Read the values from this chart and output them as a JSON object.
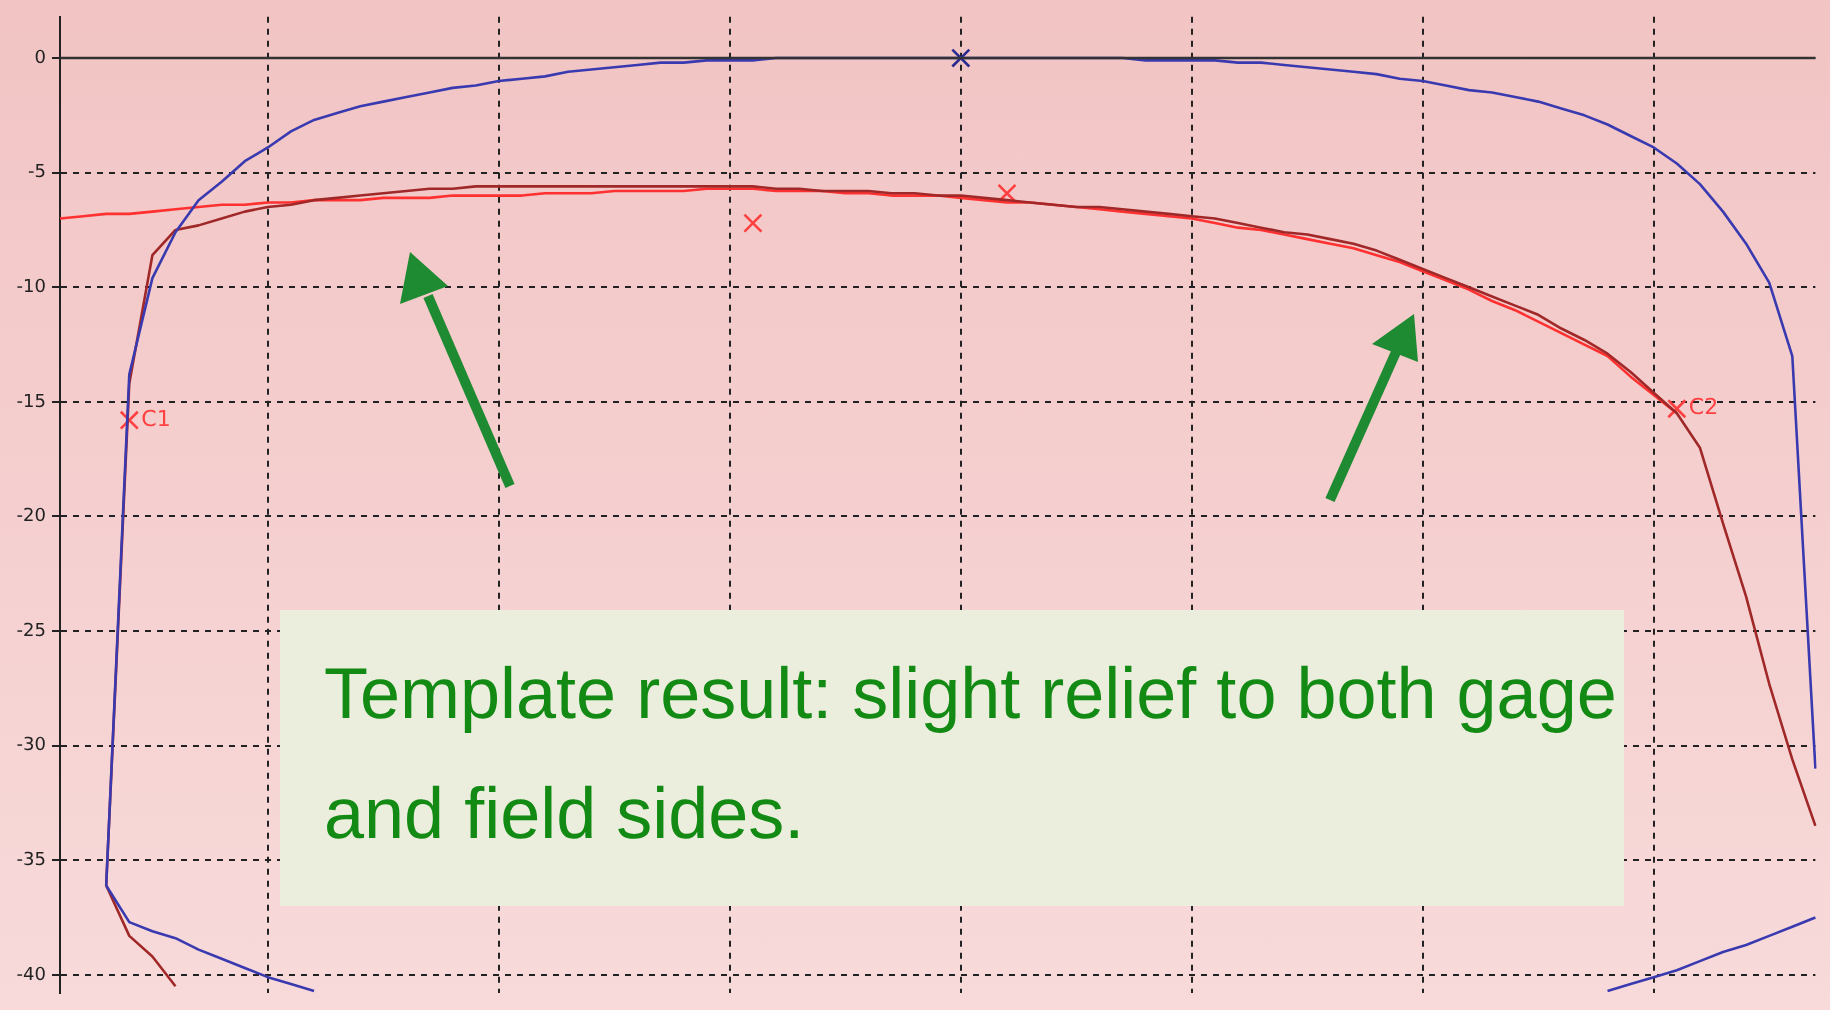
{
  "chart_data": {
    "type": "line",
    "ylim": [
      -40.8,
      1.8
    ],
    "categories": [
      null,
      null,
      null,
      null,
      null,
      null,
      null,
      null,
      null,
      null,
      null,
      null,
      null,
      null,
      null,
      null,
      null,
      null,
      null,
      null,
      null,
      null,
      null,
      null,
      null,
      null,
      null,
      null,
      null,
      null,
      null,
      null,
      null,
      null,
      null,
      null,
      null,
      null,
      null,
      null,
      null,
      null,
      null,
      null,
      null,
      null,
      null,
      null,
      null,
      null,
      null,
      null,
      null,
      null,
      null,
      null,
      null,
      null,
      null,
      null,
      null,
      null,
      null,
      null,
      null,
      null,
      null,
      null,
      null,
      null,
      null,
      null,
      null,
      null,
      null,
      null,
      null
    ],
    "yticks": [
      -40,
      -35,
      -30,
      -25,
      -20,
      -15,
      -10,
      -5,
      0
    ],
    "tick_labels": "y",
    "grid": true,
    "series": [
      {
        "color": "#3a3ab0",
        "values": [
          null,
          null,
          -36.1,
          -13.8,
          -9.6,
          -7.6,
          -6.2,
          -5.4,
          -4.5,
          -3.9,
          -3.2,
          -2.7,
          -2.4,
          -2.1,
          -1.9,
          -1.7,
          -1.5,
          -1.3,
          -1.2,
          -1.0,
          -0.9,
          -0.8,
          -0.6,
          -0.5,
          -0.4,
          -0.3,
          -0.2,
          -0.2,
          -0.1,
          -0.1,
          -0.1,
          0,
          0,
          0,
          0,
          0,
          0,
          0,
          0,
          0,
          0,
          0,
          0,
          0,
          0,
          0,
          0,
          -0.1,
          -0.1,
          -0.1,
          -0.1,
          -0.2,
          -0.2,
          -0.3,
          -0.4,
          -0.5,
          -0.6,
          -0.7,
          -0.9,
          -1.0,
          -1.2,
          -1.4,
          -1.5,
          -1.7,
          -1.9,
          -2.2,
          -2.5,
          -2.9,
          -3.4,
          -3.9,
          -4.6,
          -5.5,
          -6.7,
          -8.1,
          -9.8,
          -13.0,
          -31.0
        ]
      },
      {
        "color": "#3a3ab0",
        "values": [
          null,
          null,
          -36.1,
          -37.7,
          -38.1,
          -38.4,
          -38.9,
          -39.3,
          -39.7,
          -40.1,
          -40.4,
          -40.7,
          null,
          null,
          null,
          null,
          null,
          null,
          null,
          null,
          null,
          null,
          null,
          null,
          null,
          null,
          null,
          null,
          null,
          null,
          null,
          null,
          null,
          null,
          null,
          null,
          null,
          null,
          null,
          null,
          null,
          null,
          null,
          null,
          null,
          null,
          null,
          null,
          null,
          null,
          null,
          null,
          null,
          null,
          null,
          null,
          null,
          null,
          null,
          null,
          null,
          null,
          null,
          null,
          null,
          null,
          null,
          null,
          null,
          null,
          null,
          null,
          null,
          null,
          null,
          null,
          null
        ]
      },
      {
        "color": "#3a3ab0",
        "values": [
          null,
          null,
          null,
          null,
          null,
          null,
          null,
          null,
          null,
          null,
          null,
          null,
          null,
          null,
          null,
          null,
          null,
          null,
          null,
          null,
          null,
          null,
          null,
          null,
          null,
          null,
          null,
          null,
          null,
          null,
          null,
          null,
          null,
          null,
          null,
          null,
          null,
          null,
          null,
          null,
          null,
          null,
          null,
          null,
          null,
          null,
          null,
          null,
          null,
          null,
          null,
          null,
          null,
          null,
          null,
          null,
          null,
          null,
          null,
          null,
          null,
          null,
          null,
          null,
          null,
          null,
          null,
          -40.7,
          -40.4,
          -40.1,
          -39.8,
          -39.4,
          -39.0,
          -38.7,
          -38.3,
          -37.9,
          -37.5
        ]
      },
      {
        "color": "#a02828",
        "values": [
          null,
          null,
          -36.1,
          -14.2,
          -8.6,
          -7.5,
          -7.3,
          -7.0,
          -6.7,
          -6.5,
          -6.4,
          -6.2,
          -6.1,
          -6.0,
          -5.9,
          -5.8,
          -5.7,
          -5.7,
          -5.6,
          -5.6,
          -5.6,
          -5.6,
          -5.6,
          -5.6,
          -5.6,
          -5.6,
          -5.6,
          -5.6,
          -5.6,
          -5.6,
          -5.6,
          -5.7,
          -5.7,
          -5.8,
          -5.8,
          -5.8,
          -5.9,
          -5.9,
          -6.0,
          -6.0,
          -6.1,
          -6.2,
          -6.3,
          -6.4,
          -6.5,
          -6.5,
          -6.6,
          -6.7,
          -6.8,
          -6.9,
          -7.0,
          -7.2,
          -7.4,
          -7.6,
          -7.7,
          -7.9,
          -8.1,
          -8.4,
          -8.8,
          -9.2,
          -9.6,
          -10.0,
          -10.4,
          -10.8,
          -11.2,
          -11.8,
          -12.3,
          -12.9,
          -13.7,
          -14.6,
          -15.5,
          -17.0,
          -20.3,
          -23.5,
          -27.3,
          -30.6,
          -33.5
        ]
      },
      {
        "color": "#a02828",
        "values": [
          null,
          null,
          -36.1,
          -38.3,
          -39.2,
          -40.5,
          null,
          null,
          null,
          null,
          null,
          null,
          null,
          null,
          null,
          null,
          null,
          null,
          null,
          null,
          null,
          null,
          null,
          null,
          null,
          null,
          null,
          null,
          null,
          null,
          null,
          null,
          null,
          null,
          null,
          null,
          null,
          null,
          null,
          null,
          null,
          null,
          null,
          null,
          null,
          null,
          null,
          null,
          null,
          null,
          null,
          null,
          null,
          null,
          null,
          null,
          null,
          null,
          null,
          null,
          null,
          null,
          null,
          null,
          null,
          null,
          null,
          null,
          null,
          null,
          null,
          null,
          null,
          null,
          null,
          null,
          null
        ]
      },
      {
        "color": "#ff3030",
        "values": [
          -7.0,
          -6.9,
          -6.8,
          -6.8,
          -6.7,
          -6.6,
          -6.5,
          -6.4,
          -6.4,
          -6.3,
          -6.3,
          -6.2,
          -6.2,
          -6.2,
          -6.1,
          -6.1,
          -6.1,
          -6.0,
          -6.0,
          -6.0,
          -6.0,
          -5.9,
          -5.9,
          -5.9,
          -5.8,
          -5.8,
          -5.8,
          -5.8,
          -5.7,
          -5.7,
          -5.7,
          -5.8,
          -5.8,
          -5.8,
          -5.9,
          -5.9,
          -6.0,
          -6.0,
          -6.0,
          -6.1,
          -6.2,
          -6.3,
          -6.3,
          -6.4,
          -6.5,
          -6.6,
          -6.7,
          -6.8,
          -6.9,
          -7.0,
          -7.2,
          -7.4,
          -7.5,
          -7.7,
          -7.9,
          -8.1,
          -8.3,
          -8.6,
          -8.9,
          -9.3,
          -9.7,
          -10.1,
          -10.6,
          -11.0,
          -11.5,
          -12.0,
          -12.5,
          -13.0,
          -13.9,
          -14.7,
          -15.5,
          null,
          null,
          null,
          null,
          null,
          null
        ]
      },
      {
        "type": "scatter",
        "color": "#ff4040",
        "marker": "cross",
        "values": [
          null,
          null,
          null,
          -15.8,
          null,
          null,
          null,
          null,
          null,
          null,
          null,
          null,
          null,
          null,
          null,
          null,
          null,
          null,
          null,
          null,
          null,
          null,
          null,
          null,
          null,
          null,
          null,
          null,
          null,
          null,
          null,
          null,
          null,
          null,
          null,
          null,
          null,
          null,
          null,
          null,
          null,
          null,
          null,
          null,
          null,
          null,
          null,
          null,
          null,
          null,
          null,
          null,
          null,
          null,
          null,
          null,
          null,
          null,
          null,
          null,
          null,
          null,
          null,
          null,
          null,
          null,
          null,
          null,
          null,
          null,
          -15.3,
          null,
          null,
          null,
          null,
          null,
          null
        ],
        "value_labels": [
          null,
          null,
          null,
          "C1",
          null,
          null,
          null,
          null,
          null,
          null,
          null,
          null,
          null,
          null,
          null,
          null,
          null,
          null,
          null,
          null,
          null,
          null,
          null,
          null,
          null,
          null,
          null,
          null,
          null,
          null,
          null,
          null,
          null,
          null,
          null,
          null,
          null,
          null,
          null,
          null,
          null,
          null,
          null,
          null,
          null,
          null,
          null,
          null,
          null,
          null,
          null,
          null,
          null,
          null,
          null,
          null,
          null,
          null,
          null,
          null,
          null,
          null,
          null,
          null,
          null,
          null,
          null,
          null,
          null,
          null,
          "C2",
          null,
          null,
          null,
          null,
          null,
          null
        ]
      },
      {
        "type": "scatter",
        "color": "#ff4040",
        "marker": "cross",
        "values": [
          null,
          null,
          null,
          null,
          null,
          null,
          null,
          null,
          null,
          null,
          null,
          null,
          null,
          null,
          null,
          null,
          null,
          null,
          null,
          null,
          null,
          null,
          null,
          null,
          null,
          null,
          null,
          null,
          null,
          null,
          -7.2,
          null,
          null,
          null,
          null,
          null,
          null,
          null,
          null,
          null,
          null,
          -5.9,
          null,
          null,
          null,
          null,
          null,
          null,
          null,
          null,
          null,
          null,
          null,
          null,
          null,
          null,
          null,
          null,
          null,
          null,
          null,
          null,
          null,
          null,
          null,
          null,
          null,
          null,
          null,
          null,
          null,
          null,
          null,
          null,
          null,
          null,
          null
        ]
      },
      {
        "type": "scatter",
        "color": "#2a2a90",
        "marker": "cross",
        "values": [
          null,
          null,
          null,
          null,
          null,
          null,
          null,
          null,
          null,
          null,
          null,
          null,
          null,
          null,
          null,
          null,
          null,
          null,
          null,
          null,
          null,
          null,
          null,
          null,
          null,
          null,
          null,
          null,
          null,
          null,
          null,
          null,
          null,
          null,
          null,
          null,
          null,
          null,
          null,
          0,
          null,
          null,
          null,
          null,
          null,
          null,
          null,
          null,
          null,
          null,
          null,
          null,
          null,
          null,
          null,
          null,
          null,
          null,
          null,
          null,
          null,
          null,
          null,
          null,
          null,
          null,
          null,
          null,
          null,
          null,
          null,
          null,
          null,
          null,
          null,
          null,
          null
        ]
      }
    ],
    "ref_lines": [
      {
        "axis": "y",
        "value": 0,
        "color": "#333333"
      }
    ],
    "annotations": [
      "Template result: slight relief to both gage and field sides."
    ]
  }
}
